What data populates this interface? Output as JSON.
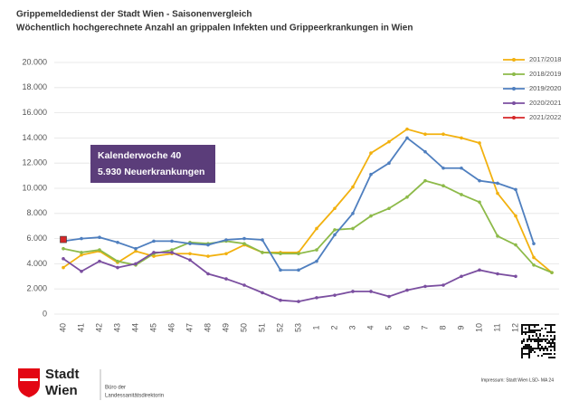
{
  "chart_data": {
    "type": "line",
    "title": "Grippemeldedienst der Stadt Wien - Saisonenvergleich",
    "subtitle": "Wöchentlich hochgerechnete Anzahl an grippalen Infekten und Grippeerkrankungen in Wien",
    "categories": [
      "40",
      "41",
      "42",
      "43",
      "44",
      "45",
      "46",
      "47",
      "48",
      "49",
      "50",
      "51",
      "52",
      "53",
      "1",
      "2",
      "3",
      "4",
      "5",
      "6",
      "7",
      "8",
      "9",
      "10",
      "11",
      "12",
      null,
      null
    ],
    "series": [
      {
        "name": "2017/2018",
        "color": "#f2b10f",
        "values": [
          3700,
          4700,
          5000,
          4100,
          5000,
          4600,
          4800,
          4800,
          4600,
          4800,
          5500,
          4900,
          4900,
          4900,
          6800,
          8400,
          10100,
          12800,
          13700,
          14700,
          14300,
          14300,
          14000,
          13600,
          9600,
          7800,
          4500,
          3300
        ]
      },
      {
        "name": "2018/2019",
        "color": "#8dba49",
        "values": [
          5200,
          4900,
          5100,
          4200,
          3900,
          4800,
          5100,
          5700,
          5600,
          5800,
          5600,
          4900,
          4800,
          4800,
          5100,
          6700,
          6800,
          7800,
          8400,
          9300,
          10600,
          10200,
          9500,
          8900,
          6200,
          5500,
          3900,
          3300
        ]
      },
      {
        "name": "2019/2020",
        "color": "#4f7fbf",
        "values": [
          5800,
          6000,
          6100,
          5700,
          5200,
          5800,
          5800,
          5600,
          5500,
          5900,
          6000,
          5900,
          3500,
          3500,
          4200,
          6300,
          8000,
          11100,
          12000,
          14000,
          12900,
          11600,
          11600,
          10600,
          10400,
          9900,
          5600,
          null
        ]
      },
      {
        "name": "2020/2021",
        "color": "#7b4fa0",
        "values": [
          4400,
          3400,
          4200,
          3700,
          4000,
          4900,
          4900,
          4300,
          3200,
          2800,
          2300,
          1700,
          1100,
          1000,
          1300,
          1500,
          1800,
          1800,
          1400,
          1900,
          2200,
          2300,
          3000,
          3500,
          3200,
          3000,
          null,
          null
        ]
      },
      {
        "name": "2021/2022",
        "color": "#d62728",
        "values": [
          5930,
          null,
          null,
          null,
          null,
          null,
          null,
          null,
          null,
          null,
          null,
          null,
          null,
          null,
          null,
          null,
          null,
          null,
          null,
          null,
          null,
          null,
          null,
          null,
          null,
          null,
          null,
          null
        ]
      }
    ],
    "ylim": [
      0,
      20000
    ],
    "yticks": [
      0,
      {
        "value": 2000,
        "label": "2.000"
      },
      {
        "value": 4000,
        "label": "4.000"
      },
      {
        "value": 6000,
        "label": "6.000"
      },
      {
        "value": 8000,
        "label": "8.000"
      },
      {
        "value": 10000,
        "label": "10.000"
      },
      {
        "value": 12000,
        "label": "12.000"
      },
      {
        "value": 14000,
        "label": "14.000"
      },
      {
        "value": 16000,
        "label": "16.000"
      },
      {
        "value": 18000,
        "label": "18.000"
      },
      {
        "value": 20000,
        "label": "20.000"
      }
    ],
    "annotation": [
      "Kalenderwoche 40",
      "5.930 Neuerkrankungen"
    ],
    "annotation_color": "#5b3d7a"
  },
  "logo": {
    "name": [
      "Stadt",
      "Wien"
    ],
    "department": [
      "Büro der",
      "Landessanitätsdirektorin"
    ]
  },
  "imprint": "Impressum: Stadt Wien LSD- MA 24"
}
